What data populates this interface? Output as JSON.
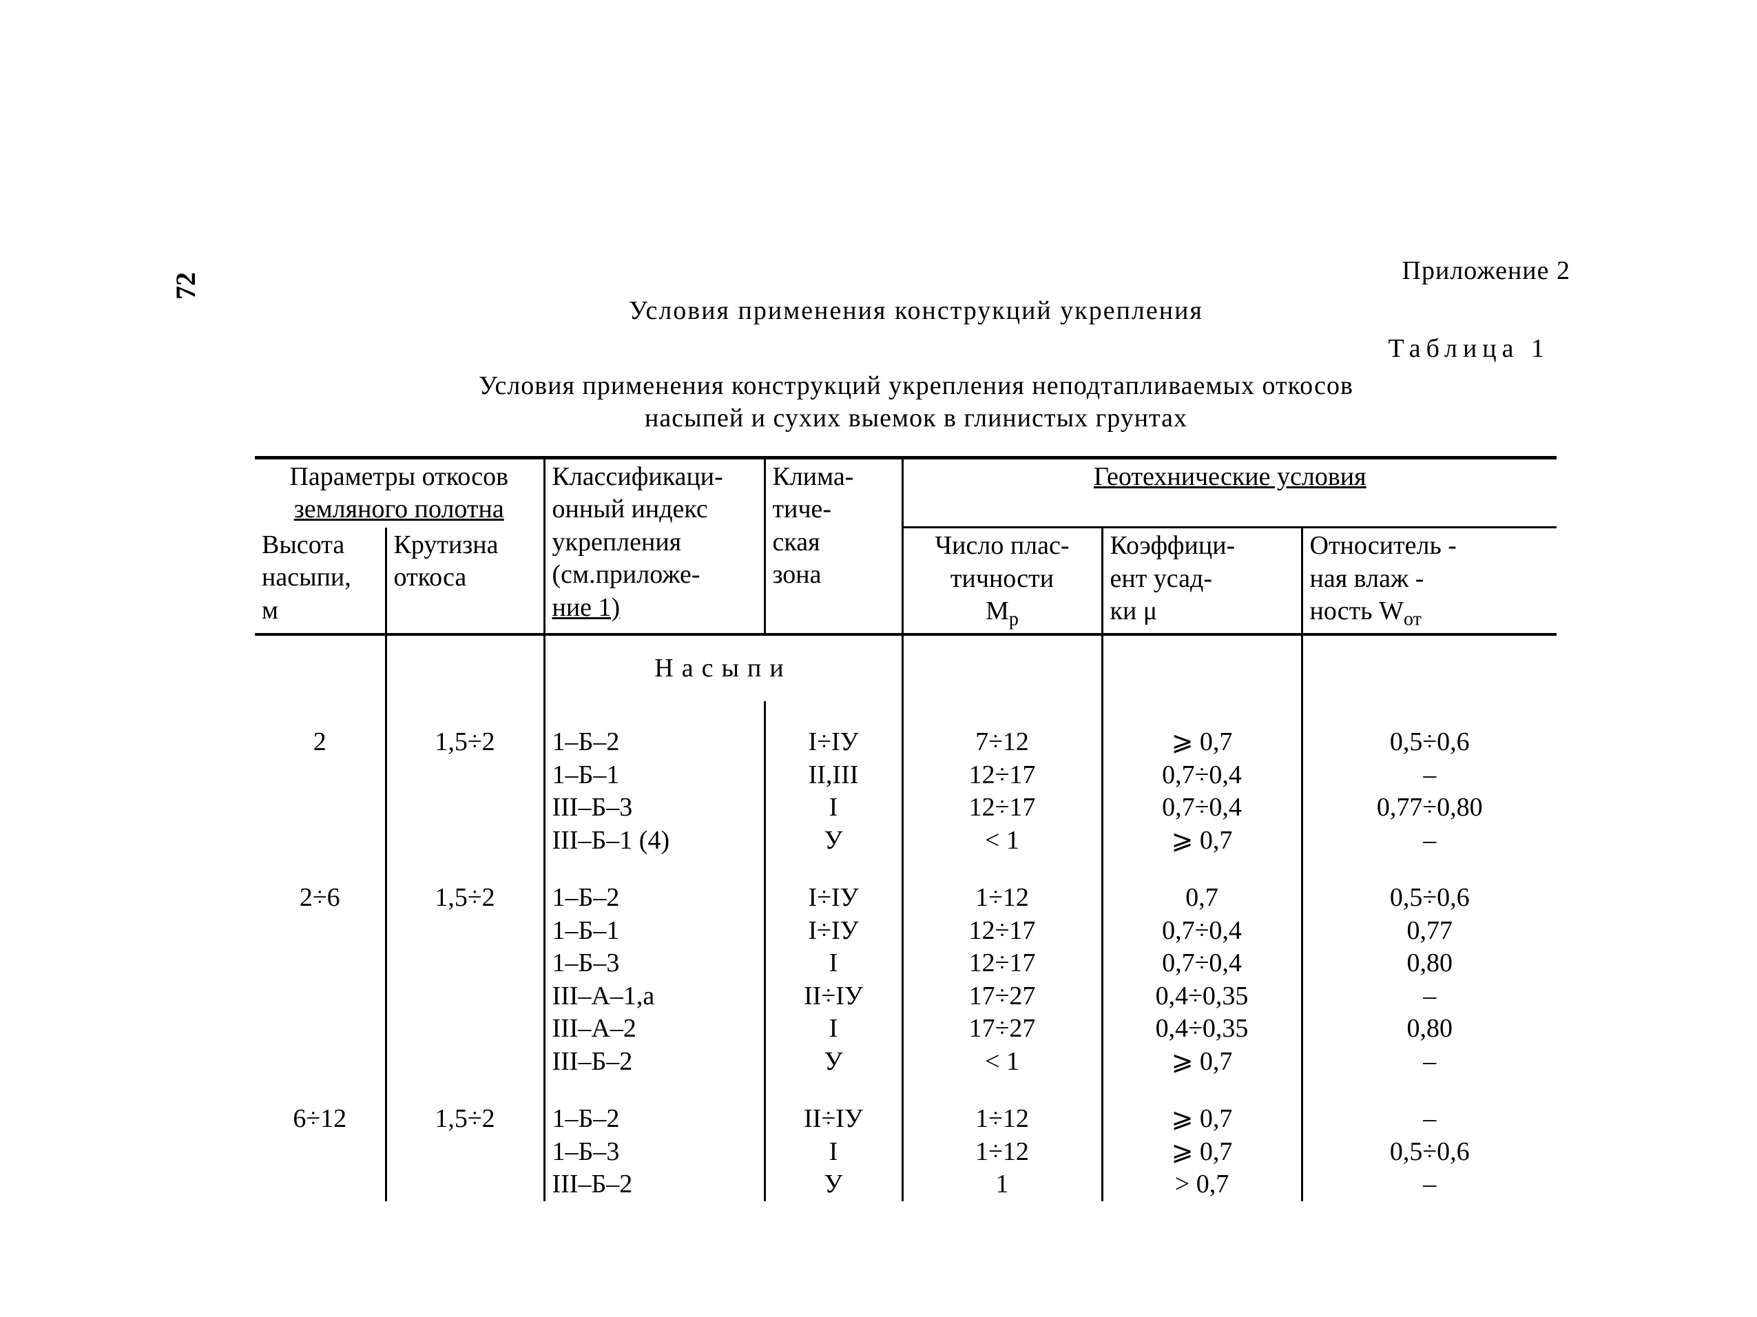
{
  "page_number": "72",
  "appendix": "Приложение 2",
  "title_main": "Условия применения конструкций укрепления",
  "table_label": "Таблица 1",
  "title_sub_line1": "Условия применения конструкций укрепления неподтапливаемых откосов",
  "title_sub_line2": "насыпей и сухих выемок в глинистых грунтах",
  "headers": {
    "params_span": "Параметры откосов",
    "params_sub": "земляного полотна",
    "height_l1": "Высота",
    "height_l2": "насыпи,",
    "height_l3": "м",
    "slope_l1": "Крутизна",
    "slope_l2": "откоса",
    "class_l1": "Классификаци-",
    "class_l2": "онный индекс",
    "class_l3": "укрепления",
    "class_l4": "(см.приложе-",
    "class_l5": "ние 1)",
    "clim_l1": "Клима-",
    "clim_l2": "тиче-",
    "clim_l3": "ская",
    "clim_l4": "зона",
    "geo_span": "Геотехнические условия",
    "plast_l1": "Число плас-",
    "plast_l2": "тичности",
    "plast_l3_pre": "M",
    "plast_l3_sub": "p",
    "coef_l1": "Коэффици-",
    "coef_l2": "ент усад-",
    "coef_l3": "ки  μ",
    "rel_l1": "Относитель -",
    "rel_l2": "ная   влаж -",
    "rel_l3_pre": "ность  W",
    "rel_l3_sub": "от"
  },
  "section_title": "Насыпи",
  "groups": [
    {
      "height": "2",
      "slope": "1,5÷2",
      "rows": [
        {
          "idx": "1–Б–2",
          "zone": "I÷IУ",
          "mp": "7÷12",
          "mu": "⩾ 0,7",
          "w": "0,5÷0,6"
        },
        {
          "idx": "1–Б–1",
          "zone": "II,III",
          "mp": "12÷17",
          "mu": "0,7÷0,4",
          "w": "–"
        },
        {
          "idx": "III–Б–3",
          "zone": "I",
          "mp": "12÷17",
          "mu": "0,7÷0,4",
          "w": "0,77÷0,80"
        },
        {
          "idx": "III–Б–1 (4)",
          "zone": "У",
          "mp": "< 1",
          "mu": "⩾ 0,7",
          "w": "–"
        }
      ]
    },
    {
      "height": "2÷6",
      "slope": "1,5÷2",
      "rows": [
        {
          "idx": "1–Б–2",
          "zone": "I÷IУ",
          "mp": "1÷12",
          "mu": "0,7",
          "w": "0,5÷0,6"
        },
        {
          "idx": "1–Б–1",
          "zone": "I÷IУ",
          "mp": "12÷17",
          "mu": "0,7÷0,4",
          "w": "0,77"
        },
        {
          "idx": "1–Б–3",
          "zone": "I",
          "mp": "12÷17",
          "mu": "0,7÷0,4",
          "w": "0,80"
        },
        {
          "idx": "III–А–1,а",
          "zone": "II÷IУ",
          "mp": "17÷27",
          "mu": "0,4÷0,35",
          "w": "–"
        },
        {
          "idx": "III–А–2",
          "zone": "I",
          "mp": "17÷27",
          "mu": "0,4÷0,35",
          "w": "0,80"
        },
        {
          "idx": "III–Б–2",
          "zone": "У",
          "mp": "< 1",
          "mu": "⩾ 0,7",
          "w": "–"
        }
      ]
    },
    {
      "height": "6÷12",
      "slope": "1,5÷2",
      "rows": [
        {
          "idx": "1–Б–2",
          "zone": "II÷IУ",
          "mp": "1÷12",
          "mu": "⩾ 0,7",
          "w": "–"
        },
        {
          "idx": "1–Б–3",
          "zone": "I",
          "mp": "1÷12",
          "mu": "⩾ 0,7",
          "w": "0,5÷0,6"
        },
        {
          "idx": "III–Б–2",
          "zone": "У",
          "mp": "1",
          "mu": "> 0,7",
          "w": "–"
        }
      ]
    }
  ]
}
